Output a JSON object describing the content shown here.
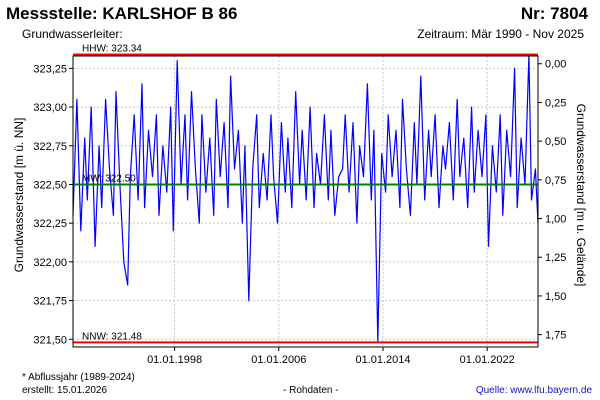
{
  "header": {
    "station": "Messstelle: KARLSHOF B 86",
    "number": "Nr: 7804",
    "aquifer": "Grundwasserleiter:",
    "period": "Zeitraum: Mär 1990 - Nov 2025"
  },
  "footer": {
    "footnote": "* Abflussjahr (1989-2024)",
    "created": "erstellt:  15.01.2026",
    "data_type": "- Rohdaten -",
    "source": "Quelle: www.lfu.bayern.de"
  },
  "chart_data": {
    "type": "line",
    "title": "",
    "ylabel": "Grundwasserstand [m ü. NN]",
    "y2label": "Grundwasserstand [m u. Gelände]",
    "xlim": [
      1990.2,
      2025.9
    ],
    "ylim": [
      321.45,
      323.33
    ],
    "y2lim": [
      1.83,
      -0.05
    ],
    "x_ticks": [
      {
        "label": "01.01.1998",
        "x": 1998.0
      },
      {
        "label": "01.01.2006",
        "x": 2006.0
      },
      {
        "label": "01.01.2014",
        "x": 2014.0
      },
      {
        "label": "01.01.2022",
        "x": 2022.0
      }
    ],
    "y_ticks": [
      {
        "label": "321,50",
        "y": 321.5
      },
      {
        "label": "321,75",
        "y": 321.75
      },
      {
        "label": "322,00",
        "y": 322.0
      },
      {
        "label": "322,25",
        "y": 322.25
      },
      {
        "label": "322,50",
        "y": 322.5
      },
      {
        "label": "322,75",
        "y": 322.75
      },
      {
        "label": "323,00",
        "y": 323.0
      },
      {
        "label": "323,25",
        "y": 323.25
      }
    ],
    "y2_ticks": [
      {
        "label": "0,00",
        "y": 0.0
      },
      {
        "label": "0,25",
        "y": 0.25
      },
      {
        "label": "0,50",
        "y": 0.5
      },
      {
        "label": "0,75",
        "y": 0.75
      },
      {
        "label": "1,00",
        "y": 1.0
      },
      {
        "label": "1,25",
        "y": 1.25
      },
      {
        "label": "1,50",
        "y": 1.5
      },
      {
        "label": "1,75",
        "y": 1.75
      }
    ],
    "reference_lines": [
      {
        "label": "HHW: 323.34",
        "value": 323.34,
        "color": "#ff0000"
      },
      {
        "label": "MW: 322.50",
        "value": 322.5,
        "color": "#008000"
      },
      {
        "label": "NNW: 321.48",
        "value": 321.48,
        "color": "#ff0000"
      }
    ],
    "series": [
      {
        "color": "#0000ff",
        "x": [
          1990.2,
          1990.5,
          1990.8,
          1991.1,
          1991.3,
          1991.6,
          1991.9,
          1992.2,
          1992.4,
          1992.7,
          1993.0,
          1993.3,
          1993.5,
          1993.8,
          1994.1,
          1994.4,
          1994.6,
          1994.9,
          1995.2,
          1995.5,
          1995.7,
          1996.0,
          1996.3,
          1996.6,
          1996.8,
          1997.1,
          1997.4,
          1997.7,
          1997.9,
          1998.2,
          1998.5,
          1998.8,
          1999.0,
          1999.3,
          1999.6,
          1999.9,
          2000.1,
          2000.4,
          2000.7,
          2001.0,
          2001.2,
          2001.5,
          2001.8,
          2002.1,
          2002.3,
          2002.6,
          2002.9,
          2003.2,
          2003.4,
          2003.7,
          2004.0,
          2004.3,
          2004.5,
          2004.8,
          2005.1,
          2005.4,
          2005.6,
          2005.9,
          2006.2,
          2006.5,
          2006.7,
          2007.0,
          2007.3,
          2007.6,
          2007.8,
          2008.1,
          2008.4,
          2008.7,
          2008.9,
          2009.2,
          2009.5,
          2009.8,
          2010.0,
          2010.3,
          2010.6,
          2010.9,
          2011.1,
          2011.4,
          2011.7,
          2012.0,
          2012.2,
          2012.5,
          2012.8,
          2013.1,
          2013.3,
          2013.6,
          2013.9,
          2014.2,
          2014.4,
          2014.7,
          2015.0,
          2015.3,
          2015.5,
          2015.8,
          2016.1,
          2016.4,
          2016.6,
          2016.9,
          2017.2,
          2017.5,
          2017.7,
          2018.0,
          2018.3,
          2018.6,
          2018.8,
          2019.1,
          2019.4,
          2019.7,
          2019.9,
          2020.2,
          2020.5,
          2020.8,
          2021.0,
          2021.3,
          2021.6,
          2021.9,
          2022.1,
          2022.4,
          2022.7,
          2023.0,
          2023.2,
          2023.5,
          2023.8,
          2024.1,
          2024.3,
          2024.6,
          2024.9,
          2025.2,
          2025.4,
          2025.7,
          2025.9
        ],
        "y": [
          322.3,
          323.05,
          322.2,
          322.8,
          322.4,
          323.0,
          322.1,
          322.75,
          322.35,
          323.05,
          322.6,
          322.3,
          323.1,
          322.5,
          322.0,
          321.85,
          322.55,
          322.95,
          322.4,
          323.15,
          322.35,
          322.85,
          322.55,
          322.95,
          322.3,
          322.75,
          322.45,
          323.0,
          322.2,
          323.3,
          322.5,
          322.95,
          322.4,
          323.1,
          322.6,
          322.25,
          322.95,
          322.45,
          322.8,
          322.3,
          323.05,
          322.55,
          322.9,
          322.35,
          323.2,
          322.6,
          322.85,
          322.25,
          322.75,
          321.75,
          322.6,
          322.95,
          322.35,
          322.7,
          322.4,
          322.95,
          322.55,
          322.25,
          322.9,
          322.45,
          322.8,
          322.35,
          323.1,
          322.5,
          322.85,
          322.4,
          323.0,
          322.35,
          322.7,
          322.5,
          322.95,
          322.4,
          322.85,
          322.3,
          322.55,
          322.6,
          322.95,
          322.45,
          322.9,
          322.25,
          322.75,
          322.55,
          323.15,
          322.4,
          322.85,
          321.48,
          322.7,
          322.45,
          322.95,
          322.55,
          322.85,
          322.35,
          323.05,
          322.6,
          322.3,
          322.9,
          322.5,
          323.2,
          322.4,
          322.85,
          322.55,
          322.95,
          322.35,
          322.75,
          322.6,
          322.9,
          322.4,
          323.05,
          322.55,
          322.8,
          322.35,
          323.0,
          322.45,
          322.85,
          322.55,
          322.95,
          322.1,
          322.75,
          322.45,
          322.95,
          322.3,
          322.85,
          322.55,
          323.25,
          322.35,
          322.8,
          322.5,
          323.34,
          322.4,
          322.6,
          322.25
        ]
      }
    ]
  }
}
